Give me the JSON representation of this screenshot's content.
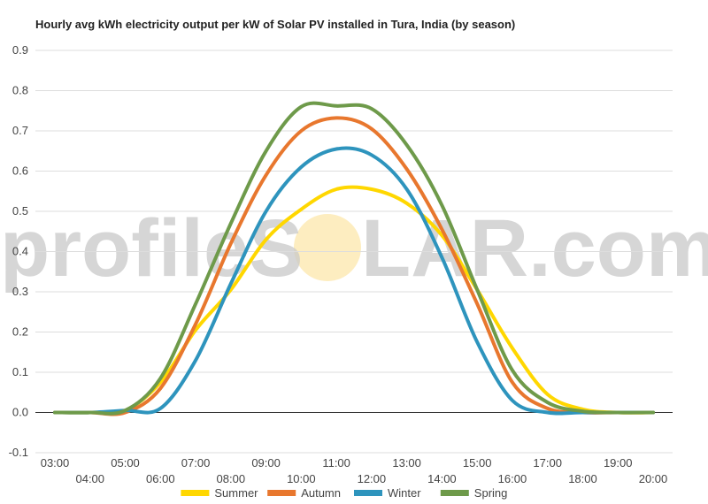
{
  "chart_data": {
    "type": "line",
    "title": "Hourly avg kWh electricity output per kW of Solar PV installed in Tura, India (by season)",
    "xlabel": "",
    "ylabel": "",
    "ylim": [
      -0.1,
      0.9
    ],
    "y_ticks": [
      "-0.1",
      "0.0",
      "0.1",
      "0.2",
      "0.3",
      "0.4",
      "0.5",
      "0.6",
      "0.7",
      "0.8",
      "0.9"
    ],
    "x_ticks": [
      "03:00",
      "04:00",
      "05:00",
      "06:00",
      "07:00",
      "08:00",
      "09:00",
      "10:00",
      "11:00",
      "12:00",
      "13:00",
      "14:00",
      "15:00",
      "16:00",
      "17:00",
      "18:00",
      "19:00",
      "20:00"
    ],
    "x": [
      3,
      4,
      5,
      6,
      7,
      8,
      9,
      10,
      11,
      12,
      13,
      14,
      15,
      16,
      17,
      18,
      19,
      20
    ],
    "grid": true,
    "legend": "bottom",
    "series": [
      {
        "name": "Summer",
        "color": "#ffd700",
        "values": [
          0,
          0,
          0.005,
          0.075,
          0.205,
          0.305,
          0.43,
          0.505,
          0.555,
          0.555,
          0.52,
          0.44,
          0.305,
          0.16,
          0.045,
          0.008,
          0,
          0
        ]
      },
      {
        "name": "Autumn",
        "color": "#e8772e",
        "values": [
          0,
          0,
          0,
          0.06,
          0.22,
          0.42,
          0.59,
          0.7,
          0.732,
          0.705,
          0.605,
          0.455,
          0.27,
          0.075,
          0.01,
          0,
          0,
          0
        ]
      },
      {
        "name": "Winter",
        "color": "#2e94bd",
        "values": [
          0,
          0,
          0.005,
          0.01,
          0.13,
          0.32,
          0.5,
          0.61,
          0.655,
          0.64,
          0.555,
          0.385,
          0.175,
          0.03,
          0,
          0,
          0,
          0
        ]
      },
      {
        "name": "Spring",
        "color": "#6e9a4a",
        "values": [
          0,
          0,
          0.005,
          0.085,
          0.27,
          0.47,
          0.65,
          0.76,
          0.762,
          0.755,
          0.665,
          0.515,
          0.305,
          0.105,
          0.025,
          0.003,
          0,
          0
        ]
      }
    ]
  },
  "watermark": {
    "text_left": "profileS",
    "text_right": "LAR.com",
    "sun_color": "#fce9b0"
  }
}
